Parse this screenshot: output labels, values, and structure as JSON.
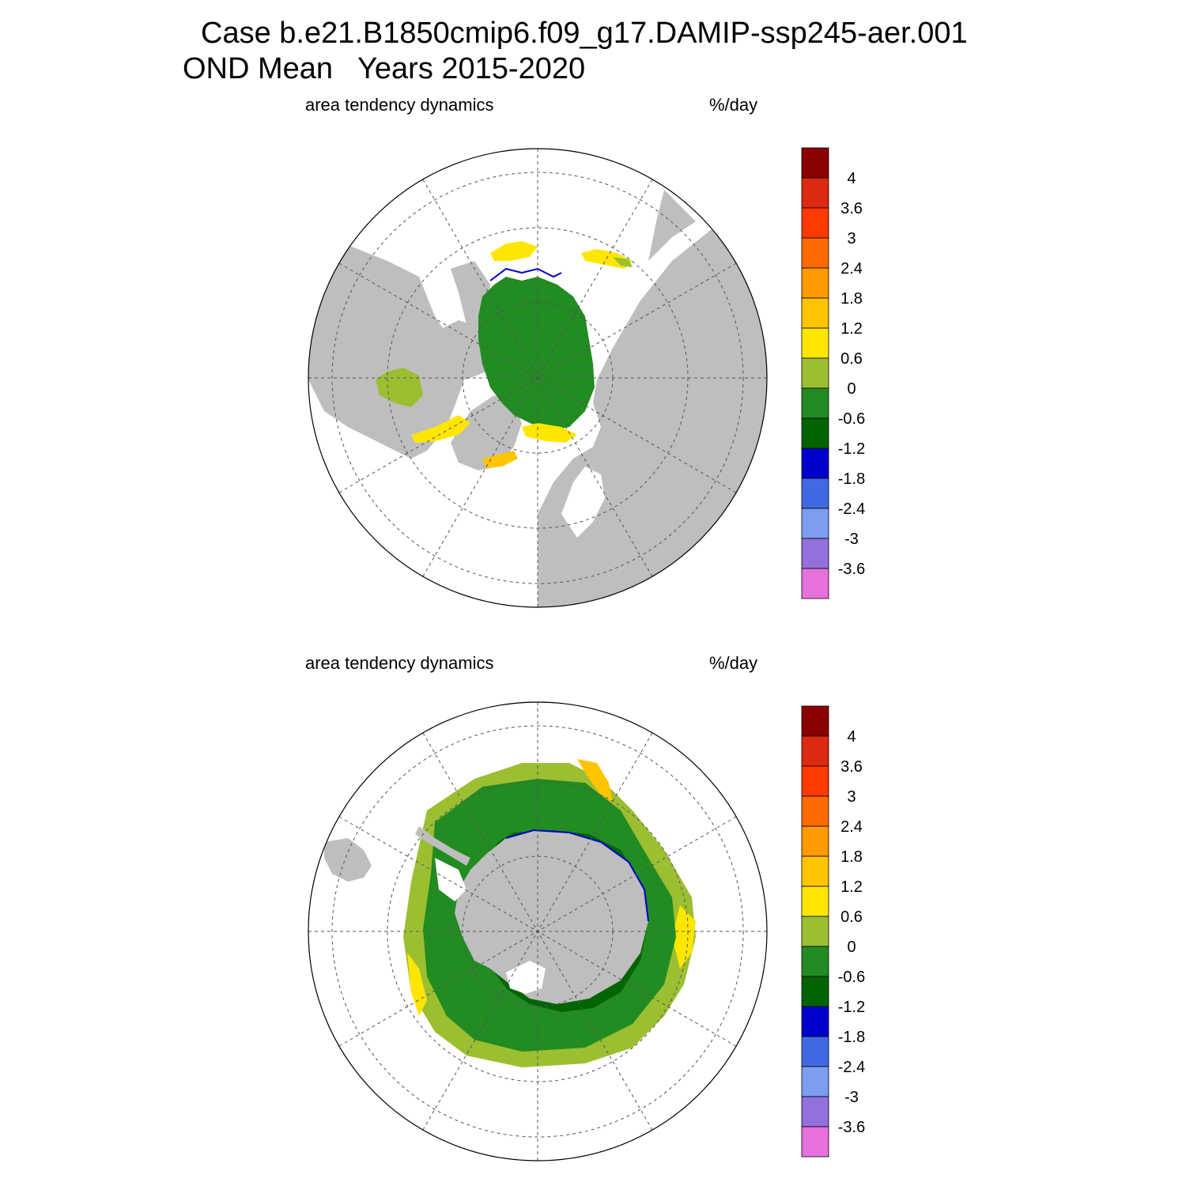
{
  "title": {
    "line1": "Case b.e21.B1850cmip6.f09_g17.DAMIP-ssp245-aer.001",
    "line2": "OND Mean   Years 2015-2020"
  },
  "panels": [
    {
      "id": "north",
      "left_label": "area tendency dynamics",
      "right_label": "%/day"
    },
    {
      "id": "south",
      "left_label": "area tendency dynamics",
      "right_label": "%/day"
    }
  ],
  "colorbar": {
    "labels": [
      "4",
      "3.6",
      "3",
      "2.4",
      "1.8",
      "1.2",
      "0.6",
      "0",
      "-0.6",
      "-1.2",
      "-1.8",
      "-2.4",
      "-3",
      "-3.6"
    ],
    "colors": [
      "#8b0000",
      "#dc2a12",
      "#ff3a00",
      "#ff6a00",
      "#ff9a00",
      "#ffc400",
      "#ffe600",
      "#9cbf32",
      "#228b22",
      "#006400",
      "#0000cd",
      "#4169e1",
      "#7b9ef0",
      "#9370db",
      "#e671dd"
    ]
  },
  "map_colors": {
    "land": "#bebebe",
    "ocean": "#ffffff",
    "ice_green": "#228b22",
    "ice_dark": "#006400",
    "ice_light": "#9cbf32",
    "ice_yellow": "#ffe600",
    "ice_orange": "#ffc400",
    "edge_blue": "#0000cd"
  }
}
